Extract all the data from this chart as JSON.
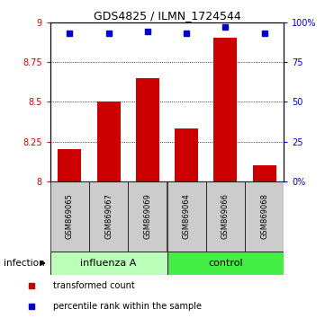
{
  "title": "GDS4825 / ILMN_1724544",
  "samples": [
    "GSM869065",
    "GSM869067",
    "GSM869069",
    "GSM869064",
    "GSM869066",
    "GSM869068"
  ],
  "bar_values": [
    8.2,
    8.5,
    8.65,
    8.33,
    8.9,
    8.1
  ],
  "percentile_values": [
    93,
    93,
    94.5,
    93,
    97,
    93
  ],
  "bar_color": "#cc0000",
  "percentile_color": "#0000cc",
  "ylim_left": [
    8.0,
    9.0
  ],
  "ylim_right": [
    0,
    100
  ],
  "yticks_left": [
    8.0,
    8.25,
    8.5,
    8.75,
    9.0
  ],
  "yticks_right": [
    0,
    25,
    50,
    75,
    100
  ],
  "ytick_labels_left": [
    "8",
    "8.25",
    "8.5",
    "8.75",
    "9"
  ],
  "ytick_labels_right": [
    "0%",
    "25",
    "50",
    "75",
    "100%"
  ],
  "grid_values": [
    8.25,
    8.5,
    8.75
  ],
  "groups": [
    {
      "label": "influenza A",
      "indices": [
        0,
        1,
        2
      ],
      "color": "#bbffbb"
    },
    {
      "label": "control",
      "indices": [
        3,
        4,
        5
      ],
      "color": "#44ee44"
    }
  ],
  "group_label": "infection",
  "tick_label_area_color": "#cccccc",
  "legend_bar_label": "transformed count",
  "legend_dot_label": "percentile rank within the sample"
}
